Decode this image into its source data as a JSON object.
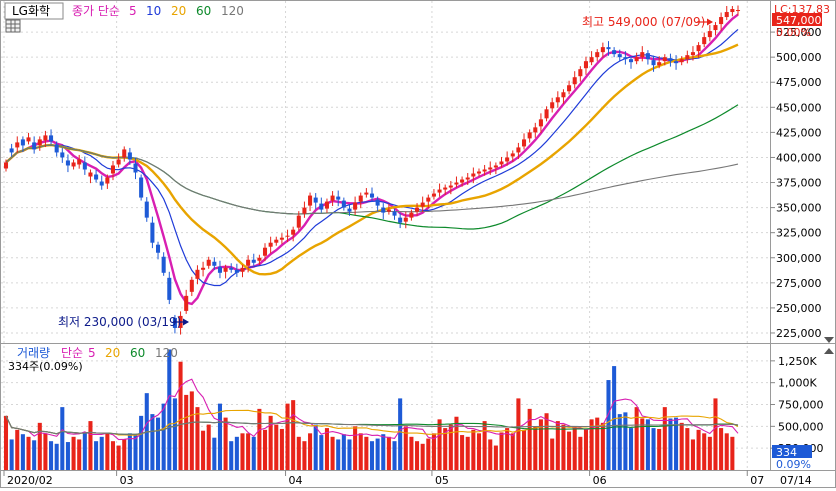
{
  "header": {
    "stock_name": "LG화학",
    "ma_title": "종가 단순",
    "ma_periods": [
      "5",
      "10",
      "20",
      "60",
      "120"
    ],
    "ma_colors": [
      "#d81fb2",
      "#1f3bd8",
      "#e8a400",
      "#0d8a2b",
      "#777777"
    ]
  },
  "price_panel": {
    "lc_label": "LC:137.83",
    "current_price": "547,000",
    "current_change": "0.00%",
    "max_annotation": "최고 549,000 (07/09)",
    "min_annotation": "최저 230,000 (03/19)",
    "y_ticks": [
      "525,000",
      "500,000",
      "475,000",
      "450,000",
      "425,000",
      "400,000",
      "375,000",
      "350,000",
      "325,000",
      "300,000",
      "275,000",
      "250,000",
      "225,000"
    ],
    "y_tick_values": [
      525000,
      500000,
      475000,
      450000,
      425000,
      400000,
      375000,
      350000,
      325000,
      300000,
      275000,
      250000,
      225000
    ]
  },
  "volume_panel": {
    "title": "거래량",
    "ma_title": "단순",
    "ma_periods": [
      "5",
      "20",
      "60",
      "120"
    ],
    "ma_colors": [
      "#d81fb2",
      "#e8a400",
      "#0d8a2b",
      "#777777"
    ],
    "summary": "334주(0.09%)",
    "current_volume": "334",
    "current_pct": "0.09%",
    "y_ticks": [
      "1,250K",
      "1,000K",
      "750,000",
      "500,000",
      "250,000"
    ],
    "y_tick_values": [
      1250000,
      1000000,
      750000,
      500000,
      250000
    ]
  },
  "x_axis": {
    "labels": [
      "2020/02",
      "03",
      "04",
      "05",
      "06",
      "07"
    ],
    "label_indices": [
      0,
      20,
      50,
      76,
      104,
      132
    ],
    "end_label": "07/14"
  },
  "colors": {
    "up": "#e8241a",
    "down": "#1e5ad6",
    "annotation_max": "#e8241a",
    "annotation_min": "#0c1a8a",
    "price_box": "#e8241a",
    "volume_box": "#1e5ad6"
  },
  "chart_data": {
    "type": "candlestick",
    "y_range": [
      215000,
      555000
    ],
    "volume_range": [
      0,
      1420000
    ],
    "closes": [
      395000,
      405000,
      415000,
      412000,
      420000,
      408000,
      418000,
      422000,
      416000,
      405000,
      400000,
      392000,
      395000,
      398000,
      388000,
      385000,
      378000,
      372000,
      380000,
      392000,
      398000,
      408000,
      398000,
      385000,
      360000,
      340000,
      315000,
      305000,
      285000,
      258000,
      230000,
      242000,
      262000,
      278000,
      288000,
      290000,
      298000,
      292000,
      285000,
      290000,
      288000,
      285000,
      290000,
      298000,
      295000,
      300000,
      310000,
      315000,
      318000,
      320000,
      322000,
      328000,
      342000,
      350000,
      362000,
      355000,
      348000,
      356000,
      362000,
      358000,
      350000,
      346000,
      355000,
      362000,
      365000,
      360000,
      352000,
      345000,
      348000,
      342000,
      335000,
      340000,
      345000,
      350000,
      355000,
      360000,
      364000,
      368000,
      370000,
      372000,
      375000,
      378000,
      380000,
      384000,
      386000,
      388000,
      390000,
      392000,
      396000,
      400000,
      404000,
      410000,
      418000,
      425000,
      430000,
      438000,
      448000,
      455000,
      460000,
      465000,
      472000,
      480000,
      488000,
      496000,
      500000,
      505000,
      510000,
      508000,
      503000,
      500000,
      498000,
      495000,
      500000,
      505000,
      498000,
      492000,
      495000,
      500000,
      496000,
      494000,
      498000,
      502000,
      505000,
      512000,
      520000,
      526000,
      532000,
      540000,
      545000,
      548000,
      547000
    ],
    "opens_offset": [
      -6000,
      4000,
      -5000,
      6000,
      -4000,
      7000,
      -6000,
      -5000,
      6000,
      8000,
      5000,
      5000,
      -4000,
      -5000,
      7000,
      -4000,
      5000,
      4000,
      -6000,
      -8000,
      -5000,
      -8000,
      7000,
      9000,
      20000,
      16000,
      20000,
      8000,
      16000,
      22000,
      10000,
      -12000,
      -15000,
      -12000,
      -9000,
      -2000,
      -6000,
      4000,
      6000,
      -4000,
      2000,
      3000,
      -4000,
      -6000,
      3000,
      -3000,
      -8000,
      -4000,
      -3000,
      -2000,
      -1000,
      -5000,
      -12000,
      -6000,
      -10000,
      5000,
      6000,
      -7000,
      -5000,
      3000,
      7000,
      3000,
      -7000,
      -6000,
      -2000,
      4000,
      6000,
      5000,
      -2000,
      4000,
      5000,
      -4000,
      -5000,
      -4000,
      -4000,
      -4000,
      -3000,
      -3000,
      -2000,
      -2000,
      -2000,
      -3000,
      -2000,
      -3000,
      -2000,
      -2000,
      -2000,
      -2000,
      -3000,
      -4000,
      -3000,
      -5000,
      -7000,
      -6000,
      -5000,
      -7000,
      -9000,
      -6000,
      -5000,
      -5000,
      -6000,
      -7000,
      -7000,
      -7000,
      -5000,
      -5000,
      -5000,
      2000,
      4000,
      3000,
      2000,
      3000,
      -4000,
      -5000,
      6000,
      5000,
      -3000,
      -4000,
      3000,
      2000,
      -3000,
      -4000,
      -3000,
      -6000,
      -7000,
      -6000,
      -5000,
      -7000,
      -5000,
      -3000,
      0
    ],
    "volumes": [
      620000,
      350000,
      460000,
      410000,
      380000,
      340000,
      540000,
      420000,
      330000,
      300000,
      720000,
      320000,
      380000,
      350000,
      420000,
      560000,
      330000,
      380000,
      420000,
      330000,
      280000,
      350000,
      420000,
      410000,
      620000,
      880000,
      640000,
      600000,
      760000,
      1380000,
      820000,
      1240000,
      860000,
      900000,
      720000,
      450000,
      520000,
      370000,
      760000,
      600000,
      330000,
      380000,
      420000,
      420000,
      380000,
      700000,
      460000,
      620000,
      520000,
      470000,
      760000,
      800000,
      380000,
      330000,
      420000,
      520000,
      400000,
      480000,
      380000,
      350000,
      410000,
      350000,
      500000,
      420000,
      380000,
      330000,
      360000,
      410000,
      380000,
      330000,
      820000,
      500000,
      380000,
      330000,
      300000,
      360000,
      420000,
      580000,
      480000,
      520000,
      610000,
      400000,
      380000,
      460000,
      420000,
      560000,
      350000,
      280000,
      430000,
      480000,
      420000,
      820000,
      460000,
      700000,
      500000,
      580000,
      650000,
      360000,
      560000,
      520000,
      440000,
      500000,
      380000,
      470000,
      580000,
      600000,
      540000,
      1030000,
      1190000,
      640000,
      660000,
      480000,
      720000,
      590000,
      580000,
      480000,
      470000,
      720000,
      590000,
      600000,
      540000,
      480000,
      350000,
      460000,
      420000,
      380000,
      820000,
      480000,
      420000,
      380000,
      334
    ]
  }
}
